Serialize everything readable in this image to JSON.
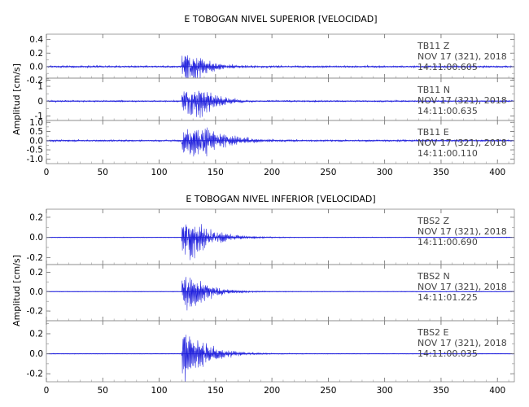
{
  "chart_data": [
    {
      "type": "line",
      "title": "E TOBOGAN NIVEL SUPERIOR [VELOCIDAD]",
      "ylabel": "Amplitud [cm/s]",
      "xlim": [
        0,
        415
      ],
      "x_ticks": [
        0,
        50,
        100,
        150,
        200,
        250,
        300,
        350,
        400
      ],
      "line_color": "#2222dd",
      "panels": [
        {
          "station": "TB11",
          "component": "Z",
          "date": "NOV 17 (321), 2018",
          "time": "14:11:00.605",
          "ylim": [
            -0.17,
            0.48
          ],
          "y_ticks": [
            "0.4",
            "0.2",
            "0.0",
            "-0.2"
          ],
          "y_tick_values": [
            0.4,
            0.2,
            0.0,
            -0.2
          ],
          "signal": {
            "onset": 120,
            "peak_time": 124,
            "peak": 0.28,
            "decay": 17,
            "noise": 0.014
          }
        },
        {
          "station": "TB11",
          "component": "N",
          "date": "NOV 17 (321), 2018",
          "time": "14:11:00.635",
          "ylim": [
            -1.3,
            1.55
          ],
          "y_ticks": [
            "1",
            "0",
            "-1"
          ],
          "y_tick_values": [
            1,
            0,
            -1
          ],
          "signal": {
            "onset": 120,
            "peak_time": 138,
            "peak": 1.22,
            "decay": 14,
            "noise": 0.05
          }
        },
        {
          "station": "TB11",
          "component": "E",
          "date": "NOV 17 (321), 2018",
          "time": "14:11:00.110",
          "ylim": [
            -1.25,
            1.1
          ],
          "y_ticks": [
            "1.0",
            "0.5",
            "0.0",
            "-0.5",
            "-1.0"
          ],
          "y_tick_values": [
            1.0,
            0.5,
            0.0,
            -0.5,
            -1.0
          ],
          "signal": {
            "onset": 120,
            "peak_time": 138,
            "peak": 0.95,
            "decay": 22,
            "noise": 0.05
          }
        }
      ]
    },
    {
      "type": "line",
      "title": "E TOBOGAN NIVEL INFERIOR [VELOCIDAD]",
      "ylabel": "Amplitud [cm/s]",
      "xlim": [
        0,
        415
      ],
      "x_ticks": [
        0,
        50,
        100,
        150,
        200,
        250,
        300,
        350,
        400
      ],
      "line_color": "#2222dd",
      "panels": [
        {
          "station": "TBS2",
          "component": "Z",
          "date": "NOV 17 (321), 2018",
          "time": "14:11:00.690",
          "ylim": [
            -0.27,
            0.28
          ],
          "y_ticks": [
            "0.2",
            "0.0",
            "-0.2"
          ],
          "y_tick_values": [
            0.2,
            0.0,
            -0.2
          ],
          "signal": {
            "onset": 120,
            "peak_time": 123,
            "peak": 0.26,
            "decay": 20,
            "noise": 0.003
          }
        },
        {
          "station": "TBS2",
          "component": "N",
          "date": "NOV 17 (321), 2018",
          "time": "14:11:01.225",
          "ylim": [
            -0.3,
            0.28
          ],
          "y_ticks": [
            "0.2",
            "0.0",
            "-0.2"
          ],
          "y_tick_values": [
            0.2,
            0.0,
            -0.2
          ],
          "signal": {
            "onset": 120,
            "peak_time": 124,
            "peak": 0.24,
            "decay": 18,
            "noise": 0.003
          }
        },
        {
          "station": "TBS2",
          "component": "E",
          "date": "NOV 17 (321), 2018",
          "time": "14:11:00.035",
          "ylim": [
            -0.28,
            0.33
          ],
          "y_ticks": [
            "0.2",
            "0.0",
            "-0.2"
          ],
          "y_tick_values": [
            0.2,
            0.0,
            -0.2
          ],
          "signal": {
            "onset": 120,
            "peak_time": 123,
            "peak": 0.3,
            "decay": 19,
            "noise": 0.003
          }
        }
      ]
    }
  ]
}
